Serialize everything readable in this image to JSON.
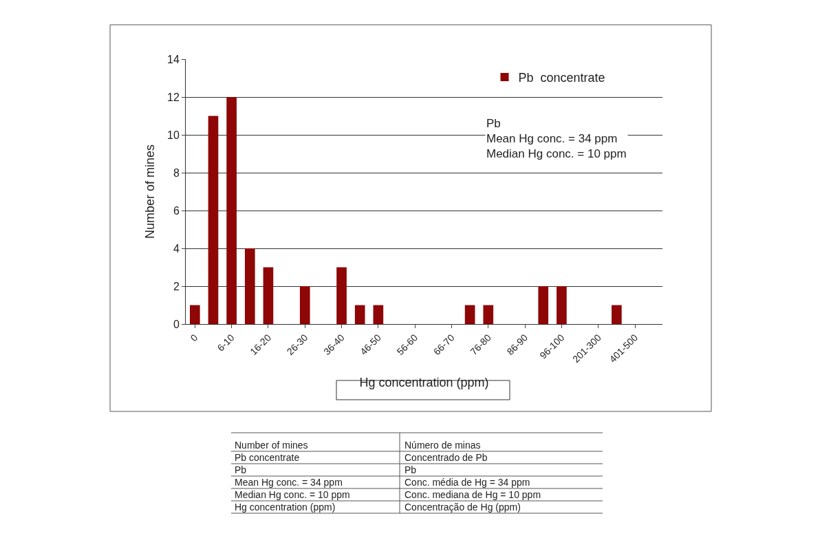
{
  "chart_data": {
    "type": "bar",
    "categories": [
      "0",
      null,
      "6-10",
      null,
      "16-20",
      null,
      "26-30",
      null,
      "36-40",
      null,
      "46-50",
      null,
      "56-60",
      null,
      "66-70",
      null,
      "76-80",
      null,
      "86-90",
      null,
      "96-100",
      null,
      "201-300",
      null,
      "401-500",
      null
    ],
    "series": [
      {
        "name": "Pb  concentrate",
        "color": "#8e0606",
        "values": [
          1,
          11,
          12,
          4,
          3,
          0,
          2,
          0,
          3,
          1,
          1,
          0,
          0,
          0,
          0,
          1,
          1,
          0,
          0,
          2,
          2,
          0,
          0,
          1,
          0,
          0
        ]
      }
    ],
    "xlabel": "Hg concentration (ppm)",
    "ylabel": "Number of mines",
    "ylim": [
      0,
      14
    ],
    "yticks": [
      0,
      2,
      4,
      6,
      8,
      10,
      12,
      14
    ],
    "grid": "y",
    "legend": "top right",
    "annotations": [
      "Pb\nMean Hg conc. = 34 ppm\nMedian Hg conc. = 10 ppm",
      "Number of mines",
      "Número de minas",
      "Pb concentrate",
      "Concentrado de Pb",
      "Pb",
      "Pb",
      "Mean Hg conc. = 34 ppm",
      "Conc. média de Hg = 34 ppm",
      "Median Hg conc. = 10 ppm",
      "Conc. mediana de Hg = 10 ppm",
      "Hg concentration (ppm)",
      "Concentração de Hg (ppm)"
    ]
  }
}
